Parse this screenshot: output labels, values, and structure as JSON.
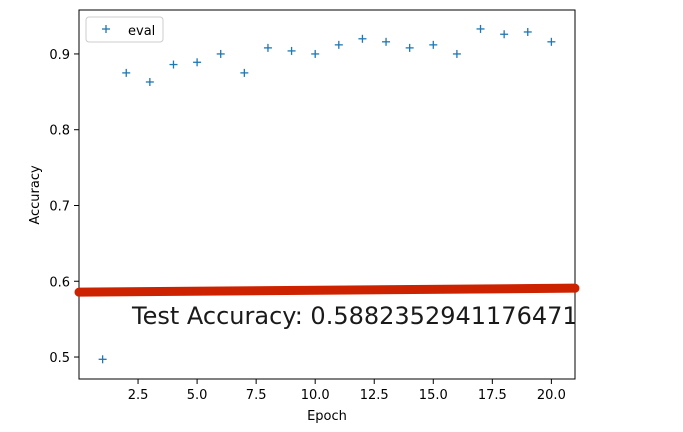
{
  "chart_data": {
    "type": "scatter",
    "xlabel": "Epoch",
    "ylabel": "Accuracy",
    "xlim": [
      0.0,
      21.0
    ],
    "ylim": [
      0.471,
      0.958
    ],
    "xticks": [
      2.5,
      5.0,
      7.5,
      10.0,
      12.5,
      15.0,
      17.5,
      20.0
    ],
    "xtick_labels": [
      "2.5",
      "5.0",
      "7.5",
      "10.0",
      "12.5",
      "15.0",
      "17.5",
      "20.0"
    ],
    "yticks": [
      0.5,
      0.6,
      0.7,
      0.8,
      0.9
    ],
    "ytick_labels": [
      "0.5",
      "0.6",
      "0.7",
      "0.8",
      "0.9"
    ],
    "grid": false,
    "legend_position": "top-left",
    "series": [
      {
        "name": "eval",
        "marker": "plus",
        "color": "#1f77b4",
        "x": [
          1,
          2,
          3,
          4,
          5,
          6,
          7,
          8,
          9,
          10,
          11,
          12,
          13,
          14,
          15,
          16,
          17,
          18,
          19,
          20
        ],
        "y": [
          0.497,
          0.875,
          0.863,
          0.886,
          0.889,
          0.9,
          0.875,
          0.908,
          0.904,
          0.9,
          0.912,
          0.92,
          0.916,
          0.908,
          0.912,
          0.9,
          0.933,
          0.926,
          0.929,
          0.916
        ]
      }
    ],
    "reference_line": {
      "value": 0.5882352941176471,
      "color": "#cc2200"
    },
    "annotation": "Test Accuracy: 0.5882352941176471"
  }
}
